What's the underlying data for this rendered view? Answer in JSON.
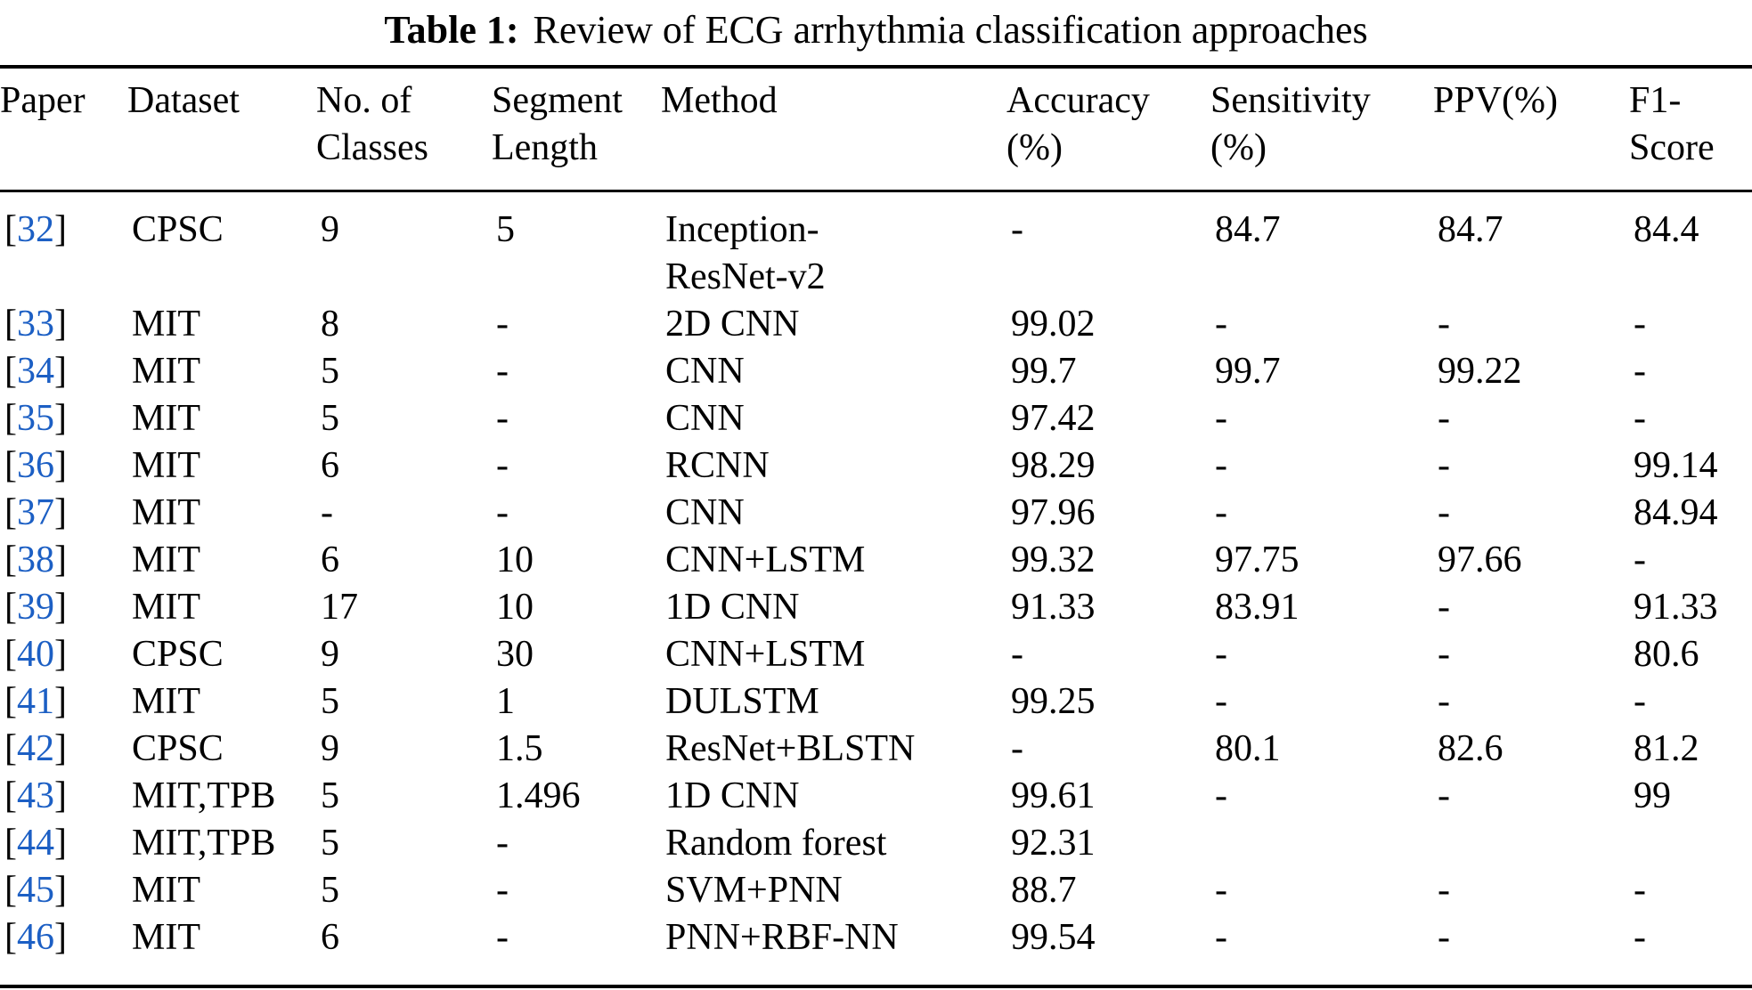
{
  "caption": {
    "label": "Table 1:",
    "text": "Review of ECG arrhythmia classification approaches"
  },
  "colors": {
    "citation_blue": "#1c5fc4",
    "text": "#000000",
    "background": "#ffffff"
  },
  "table": {
    "bracket_open": "[",
    "bracket_close": "]",
    "columns": [
      {
        "id": "paper",
        "label": "Paper"
      },
      {
        "id": "dataset",
        "label": "Dataset"
      },
      {
        "id": "classes",
        "label": "No. of\nClasses"
      },
      {
        "id": "segment",
        "label": "Segment\nLength"
      },
      {
        "id": "method",
        "label": "Method"
      },
      {
        "id": "accuracy",
        "label": "Accuracy\n(%)"
      },
      {
        "id": "sensitivity",
        "label": "Sensitivity\n(%)"
      },
      {
        "id": "ppv",
        "label": "PPV(%)"
      },
      {
        "id": "f1",
        "label": "F1-\nScore"
      }
    ],
    "rows": [
      {
        "ref": "32",
        "dataset": "CPSC",
        "classes": "9",
        "segment": "5",
        "method": "Inception-\nResNet-v2",
        "accuracy": "-",
        "sensitivity": "84.7",
        "ppv": "84.7",
        "f1": "84.4"
      },
      {
        "ref": "33",
        "dataset": "MIT",
        "classes": "8",
        "segment": "-",
        "method": "2D CNN",
        "accuracy": "99.02",
        "sensitivity": "-",
        "ppv": "-",
        "f1": "-"
      },
      {
        "ref": "34",
        "dataset": "MIT",
        "classes": "5",
        "segment": "-",
        "method": "CNN",
        "accuracy": "99.7",
        "sensitivity": "99.7",
        "ppv": "99.22",
        "f1": "-"
      },
      {
        "ref": "35",
        "dataset": "MIT",
        "classes": "5",
        "segment": "-",
        "method": "CNN",
        "accuracy": "97.42",
        "sensitivity": "-",
        "ppv": "-",
        "f1": "-"
      },
      {
        "ref": "36",
        "dataset": "MIT",
        "classes": "6",
        "segment": "-",
        "method": "RCNN",
        "accuracy": "98.29",
        "sensitivity": "-",
        "ppv": "-",
        "f1": "99.14"
      },
      {
        "ref": "37",
        "dataset": "MIT",
        "classes": "-",
        "segment": "-",
        "method": "CNN",
        "accuracy": "97.96",
        "sensitivity": "-",
        "ppv": "-",
        "f1": "84.94"
      },
      {
        "ref": "38",
        "dataset": "MIT",
        "classes": "6",
        "segment": "10",
        "method": "CNN+LSTM",
        "accuracy": "99.32",
        "sensitivity": "97.75",
        "ppv": "97.66",
        "f1": "-"
      },
      {
        "ref": "39",
        "dataset": "MIT",
        "classes": "17",
        "segment": "10",
        "method": "1D CNN",
        "accuracy": "91.33",
        "sensitivity": "83.91",
        "ppv": "-",
        "f1": "91.33"
      },
      {
        "ref": "40",
        "dataset": "CPSC",
        "classes": "9",
        "segment": "30",
        "method": "CNN+LSTM",
        "accuracy": "-",
        "sensitivity": "-",
        "ppv": "-",
        "f1": "80.6"
      },
      {
        "ref": "41",
        "dataset": "MIT",
        "classes": "5",
        "segment": "1",
        "method": "DULSTM",
        "accuracy": "99.25",
        "sensitivity": "-",
        "ppv": "-",
        "f1": "-"
      },
      {
        "ref": "42",
        "dataset": "CPSC",
        "classes": "9",
        "segment": "1.5",
        "method": "ResNet+BLSTN",
        "accuracy": "-",
        "sensitivity": "80.1",
        "ppv": "82.6",
        "f1": "81.2"
      },
      {
        "ref": "43",
        "dataset": "MIT,TPB",
        "classes": "5",
        "segment": "1.496",
        "method": "1D CNN",
        "accuracy": "99.61",
        "sensitivity": "-",
        "ppv": "-",
        "f1": "99"
      },
      {
        "ref": "44",
        "dataset": "MIT,TPB",
        "classes": "5",
        "segment": "-",
        "method": "Random forest",
        "accuracy": "92.31",
        "sensitivity": "",
        "ppv": "",
        "f1": ""
      },
      {
        "ref": "45",
        "dataset": "MIT",
        "classes": "5",
        "segment": "-",
        "method": "SVM+PNN",
        "accuracy": "88.7",
        "sensitivity": "-",
        "ppv": "-",
        "f1": "-"
      },
      {
        "ref": "46",
        "dataset": "MIT",
        "classes": "6",
        "segment": "-",
        "method": "PNN+RBF-NN",
        "accuracy": "99.54",
        "sensitivity": "-",
        "ppv": "-",
        "f1": "-"
      }
    ]
  }
}
